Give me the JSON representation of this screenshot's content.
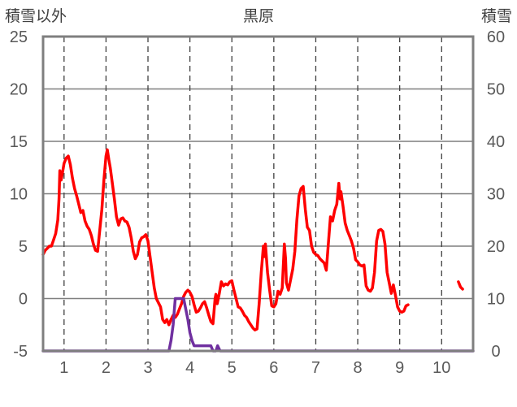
{
  "chart_data": {
    "type": "line",
    "title": "黒原",
    "ylabel_left": "積雪以外",
    "ylabel_right": "積雪",
    "x_ticks": [
      "1",
      "2",
      "3",
      "4",
      "5",
      "6",
      "7",
      "8",
      "9",
      "10"
    ],
    "xlim": [
      0.5,
      10.75
    ],
    "y_left_lim": [
      -5,
      25
    ],
    "y_left_ticks": [
      "-5",
      "0",
      "5",
      "10",
      "15",
      "20",
      "25"
    ],
    "y_right_lim": [
      0,
      60
    ],
    "y_right_ticks": [
      "0",
      "10",
      "20",
      "30",
      "40",
      "50",
      "60"
    ],
    "grid": "dashed vertical at integer x; solid horizontal at y-left 0, 5, 10, 15, 20",
    "series": [
      {
        "axis": "left",
        "color": "#ff0000",
        "segments": [
          [
            [
              0.5,
              4.2
            ],
            [
              0.55,
              4.6
            ],
            [
              0.6,
              4.8
            ],
            [
              0.65,
              5.0
            ],
            [
              0.7,
              5.0
            ],
            [
              0.75,
              5.6
            ],
            [
              0.8,
              6.2
            ],
            [
              0.85,
              7.5
            ],
            [
              0.88,
              9.5
            ],
            [
              0.9,
              12.2
            ],
            [
              0.93,
              11.3
            ],
            [
              0.97,
              12.2
            ],
            [
              1.0,
              12.9
            ],
            [
              1.05,
              13.4
            ],
            [
              1.1,
              13.6
            ],
            [
              1.15,
              12.8
            ],
            [
              1.2,
              11.5
            ],
            [
              1.25,
              10.5
            ],
            [
              1.3,
              9.8
            ],
            [
              1.35,
              9.0
            ],
            [
              1.4,
              8.2
            ],
            [
              1.45,
              8.4
            ],
            [
              1.5,
              7.4
            ],
            [
              1.55,
              6.9
            ],
            [
              1.6,
              6.6
            ],
            [
              1.65,
              6.0
            ],
            [
              1.7,
              5.2
            ],
            [
              1.75,
              4.6
            ],
            [
              1.8,
              4.5
            ],
            [
              1.85,
              6.5
            ],
            [
              1.9,
              8.5
            ],
            [
              1.95,
              11.3
            ],
            [
              2.0,
              13.6
            ],
            [
              2.03,
              14.2
            ],
            [
              2.07,
              13.2
            ],
            [
              2.1,
              12.5
            ],
            [
              2.15,
              11.0
            ],
            [
              2.2,
              9.5
            ],
            [
              2.25,
              7.8
            ],
            [
              2.3,
              7.0
            ],
            [
              2.35,
              7.6
            ],
            [
              2.4,
              7.7
            ],
            [
              2.45,
              7.4
            ],
            [
              2.5,
              7.3
            ],
            [
              2.55,
              6.8
            ],
            [
              2.6,
              5.8
            ],
            [
              2.65,
              4.5
            ],
            [
              2.7,
              3.8
            ],
            [
              2.75,
              4.2
            ],
            [
              2.8,
              5.4
            ],
            [
              2.85,
              5.8
            ],
            [
              2.9,
              5.9
            ],
            [
              2.95,
              6.1
            ],
            [
              3.0,
              5.5
            ],
            [
              3.05,
              4.0
            ],
            [
              3.1,
              2.5
            ],
            [
              3.15,
              1.0
            ],
            [
              3.2,
              0.0
            ],
            [
              3.25,
              -0.4
            ],
            [
              3.3,
              -0.8
            ],
            [
              3.35,
              -2.0
            ],
            [
              3.4,
              -2.3
            ],
            [
              3.45,
              -2.0
            ],
            [
              3.5,
              -2.5
            ],
            [
              3.55,
              -2.0
            ],
            [
              3.6,
              -1.6
            ],
            [
              3.65,
              -1.8
            ],
            [
              3.7,
              -1.5
            ],
            [
              3.75,
              -1.0
            ],
            [
              3.8,
              -0.5
            ],
            [
              3.85,
              0.2
            ],
            [
              3.9,
              0.6
            ],
            [
              3.95,
              0.8
            ],
            [
              4.0,
              0.6
            ],
            [
              4.05,
              0.2
            ],
            [
              4.1,
              -0.6
            ],
            [
              4.15,
              -1.3
            ],
            [
              4.2,
              -1.2
            ],
            [
              4.25,
              -0.9
            ],
            [
              4.3,
              -0.5
            ],
            [
              4.35,
              -0.3
            ],
            [
              4.4,
              -0.9
            ],
            [
              4.45,
              -1.6
            ],
            [
              4.5,
              -2.2
            ],
            [
              4.55,
              -2.4
            ],
            [
              4.6,
              0.0
            ],
            [
              4.62,
              0.4
            ],
            [
              4.65,
              -0.5
            ],
            [
              4.7,
              0.5
            ],
            [
              4.75,
              1.6
            ],
            [
              4.8,
              1.2
            ],
            [
              4.85,
              1.4
            ],
            [
              4.9,
              1.3
            ],
            [
              4.95,
              1.6
            ],
            [
              5.0,
              1.7
            ],
            [
              5.05,
              0.8
            ],
            [
              5.1,
              0.0
            ],
            [
              5.15,
              -0.8
            ],
            [
              5.2,
              -0.9
            ],
            [
              5.25,
              -1.2
            ],
            [
              5.3,
              -1.6
            ],
            [
              5.35,
              -1.8
            ],
            [
              5.4,
              -2.2
            ],
            [
              5.45,
              -2.5
            ],
            [
              5.5,
              -2.8
            ],
            [
              5.55,
              -3.0
            ],
            [
              5.6,
              -2.9
            ],
            [
              5.65,
              -0.5
            ],
            [
              5.7,
              2.5
            ],
            [
              5.75,
              5.0
            ],
            [
              5.78,
              4.0
            ],
            [
              5.8,
              5.2
            ],
            [
              5.85,
              2.5
            ],
            [
              5.9,
              0.8
            ],
            [
              5.95,
              -0.7
            ],
            [
              6.0,
              -0.8
            ],
            [
              6.05,
              -0.5
            ],
            [
              6.1,
              0.7
            ],
            [
              6.15,
              0.4
            ],
            [
              6.2,
              1.0
            ],
            [
              6.25,
              5.2
            ],
            [
              6.28,
              3.8
            ],
            [
              6.3,
              1.5
            ],
            [
              6.35,
              0.8
            ],
            [
              6.4,
              1.8
            ],
            [
              6.45,
              2.8
            ],
            [
              6.5,
              4.5
            ],
            [
              6.55,
              7.5
            ],
            [
              6.6,
              9.8
            ],
            [
              6.65,
              10.5
            ],
            [
              6.7,
              10.7
            ],
            [
              6.75,
              8.5
            ],
            [
              6.8,
              6.8
            ],
            [
              6.85,
              6.5
            ],
            [
              6.9,
              5.0
            ],
            [
              6.95,
              4.4
            ],
            [
              7.0,
              4.2
            ],
            [
              7.05,
              4.1
            ],
            [
              7.1,
              3.8
            ],
            [
              7.15,
              3.6
            ],
            [
              7.2,
              3.4
            ],
            [
              7.25,
              2.7
            ],
            [
              7.3,
              5.2
            ],
            [
              7.35,
              7.8
            ],
            [
              7.4,
              7.4
            ],
            [
              7.45,
              8.4
            ],
            [
              7.5,
              9.0
            ],
            [
              7.55,
              11.0
            ],
            [
              7.58,
              9.5
            ],
            [
              7.6,
              10.2
            ],
            [
              7.65,
              8.8
            ],
            [
              7.7,
              7.2
            ],
            [
              7.75,
              6.5
            ],
            [
              7.8,
              6.0
            ],
            [
              7.85,
              5.5
            ],
            [
              7.9,
              4.8
            ],
            [
              7.95,
              3.7
            ],
            [
              8.0,
              3.5
            ],
            [
              8.05,
              3.2
            ],
            [
              8.1,
              3.1
            ],
            [
              8.15,
              3.2
            ],
            [
              8.2,
              1.2
            ],
            [
              8.25,
              0.8
            ],
            [
              8.3,
              0.7
            ],
            [
              8.35,
              1.0
            ],
            [
              8.4,
              2.5
            ],
            [
              8.45,
              5.5
            ],
            [
              8.5,
              6.5
            ],
            [
              8.55,
              6.6
            ],
            [
              8.6,
              6.4
            ],
            [
              8.65,
              5.2
            ],
            [
              8.7,
              2.5
            ],
            [
              8.75,
              1.5
            ],
            [
              8.8,
              0.5
            ],
            [
              8.85,
              1.3
            ],
            [
              8.9,
              0.3
            ],
            [
              8.95,
              -0.8
            ],
            [
              9.0,
              -1.2
            ],
            [
              9.05,
              -1.3
            ],
            [
              9.1,
              -1.2
            ],
            [
              9.15,
              -0.7
            ],
            [
              9.2,
              -0.6
            ]
          ],
          [
            [
              10.4,
              1.6
            ],
            [
              10.45,
              1.1
            ],
            [
              10.5,
              0.9
            ]
          ]
        ]
      },
      {
        "axis": "right",
        "color": "#7030a0",
        "segments": [
          [
            [
              0.5,
              0.0
            ],
            [
              3.5,
              0.0
            ],
            [
              3.55,
              2.0
            ],
            [
              3.6,
              5.0
            ],
            [
              3.65,
              10.0
            ],
            [
              3.7,
              10.0
            ],
            [
              3.8,
              10.0
            ],
            [
              3.85,
              10.0
            ],
            [
              3.9,
              8.0
            ],
            [
              3.95,
              6.0
            ],
            [
              4.0,
              3.5
            ],
            [
              4.05,
              2.0
            ],
            [
              4.1,
              1.0
            ],
            [
              4.5,
              1.0
            ],
            [
              4.55,
              0.0
            ],
            [
              4.62,
              0.0
            ],
            [
              4.66,
              1.0
            ],
            [
              4.72,
              0.0
            ],
            [
              10.75,
              0.0
            ]
          ]
        ]
      }
    ]
  }
}
